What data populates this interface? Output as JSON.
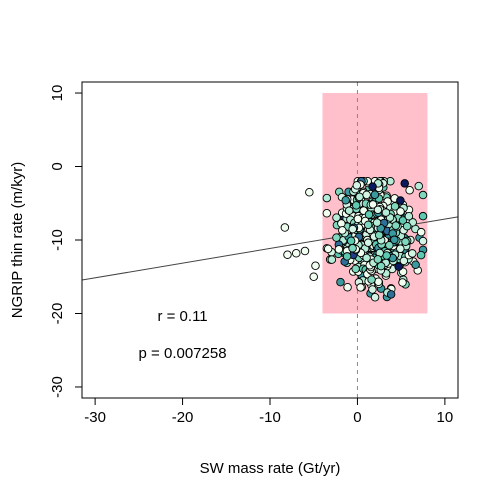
{
  "chart_data": {
    "type": "scatter",
    "title": "",
    "xlabel": "SW mass rate (Gt/yr)",
    "ylabel": "NGRIP thin rate (m/kyr)",
    "xlim": [
      -31.5,
      11.5
    ],
    "ylim": [
      -31.5,
      11.5
    ],
    "xticks": [
      -30,
      -20,
      -10,
      0,
      10
    ],
    "yticks": [
      -30,
      -20,
      -10,
      0,
      10
    ],
    "xtick_labels": [
      "-30",
      "-20",
      "-10",
      "0",
      "10"
    ],
    "ytick_labels": [
      "-30",
      "-20",
      "-10",
      "0",
      "10"
    ],
    "grid": false,
    "shaded_region": {
      "x": [
        -4,
        8
      ],
      "y": [
        -20,
        10
      ],
      "color": "#ffc0cb"
    },
    "vline": {
      "x": 0,
      "style": "dashed",
      "color": "#888888"
    },
    "regression_line": {
      "intercept": -9.15,
      "slope": 0.2,
      "color": "#444444"
    },
    "annotations": [
      {
        "text": "r = 0.11",
        "x": -20,
        "y": -20.5
      },
      {
        "text": "p = 0.007258",
        "x": -20,
        "y": -25.5
      }
    ],
    "points": {
      "n": 700,
      "x_mean": 2.0,
      "x_sd": 2.0,
      "y_mean": -9.0,
      "y_sd": 3.2,
      "outliers": [
        [
          -8.3,
          -8.3
        ],
        [
          -8.0,
          -12.0
        ],
        [
          -7.0,
          -11.8
        ],
        [
          -6.0,
          -11.5
        ],
        [
          -5.5,
          -3.5
        ],
        [
          -5.0,
          -15.0
        ],
        [
          -4.8,
          -13.5
        ]
      ],
      "colors": [
        "#f0fff0",
        "#d4f5e6",
        "#b4ecd7",
        "#7fd8bd",
        "#5cc9b0",
        "#3a9aa0",
        "#2e6f9a",
        "#1f3f8a",
        "#0b1a5e"
      ],
      "color_weights": [
        0.3,
        0.18,
        0.15,
        0.14,
        0.1,
        0.06,
        0.04,
        0.02,
        0.01
      ]
    }
  }
}
